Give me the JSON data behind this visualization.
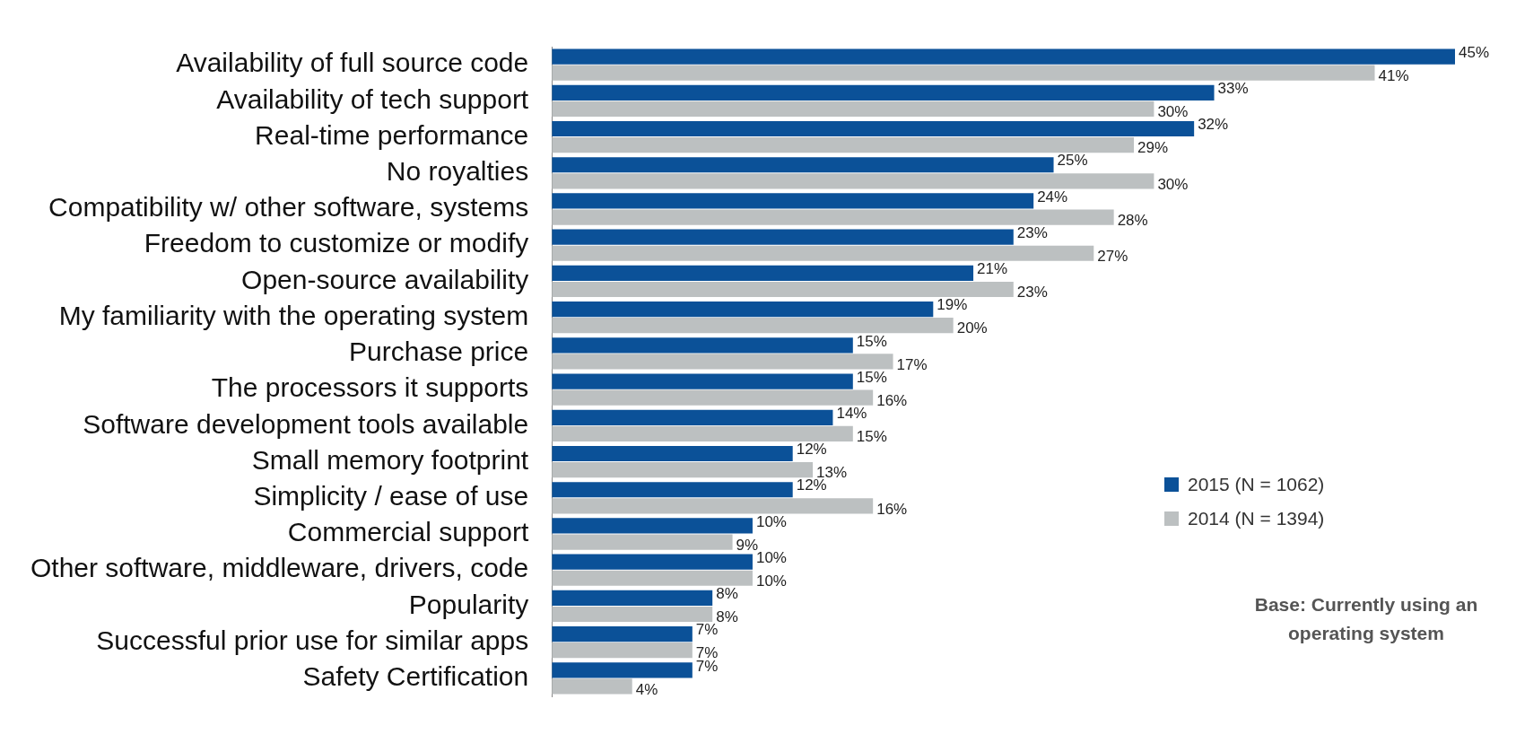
{
  "chart_data": {
    "type": "bar",
    "orientation": "horizontal",
    "categories": [
      "Availability of full source code",
      "Availability of tech support",
      "Real-time performance",
      "No royalties",
      "Compatibility w/ other software, systems",
      "Freedom to customize or modify",
      "Open-source availability",
      "My familiarity with the operating system",
      "Purchase price",
      "The processors it supports",
      "Software development tools available",
      "Small memory footprint",
      "Simplicity / ease of use",
      "Commercial support",
      "Other software, middleware, drivers, code",
      "Popularity",
      "Successful prior use for similar apps",
      "Safety Certification"
    ],
    "series": [
      {
        "name": "2015 (N = 1062)",
        "color": "#0b5198",
        "values": [
          45,
          33,
          32,
          25,
          24,
          23,
          21,
          19,
          15,
          15,
          14,
          12,
          12,
          10,
          10,
          8,
          7,
          7
        ],
        "value_labels": [
          "45%",
          "33%",
          "32%",
          "25%",
          "24%",
          "23%",
          "21%",
          "19%",
          "15%",
          "15%",
          "14%",
          "12%",
          "12%",
          "10%",
          "10%",
          "8%",
          "7%",
          "7%"
        ]
      },
      {
        "name": "2014 (N = 1394)",
        "color": "#bcc0c1",
        "values": [
          41,
          30,
          29,
          30,
          28,
          27,
          23,
          20,
          17,
          16,
          15,
          13,
          16,
          9,
          10,
          8,
          7,
          4
        ],
        "value_labels": [
          "41%",
          "30%",
          "29%",
          "30%",
          "28%",
          "27%",
          "23%",
          "20%",
          "17%",
          "16%",
          "15%",
          "13%",
          "16%",
          "9%",
          "10%",
          "8%",
          "7%",
          "4%"
        ]
      }
    ],
    "legend": "bottom right",
    "grid": false,
    "annotations": [
      "Base: Currently using an operating system"
    ]
  }
}
